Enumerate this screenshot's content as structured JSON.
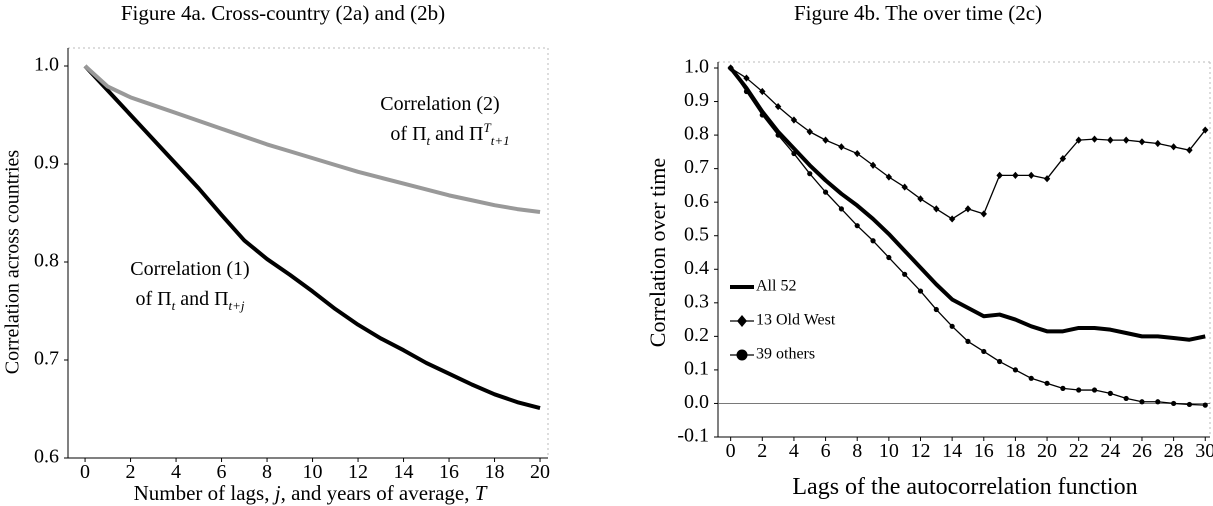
{
  "chart_data": [
    {
      "type": "line",
      "title": "Figure 4a. Cross-country (2a) and (2b)",
      "y_label": "Correlation across countries",
      "x_label": [
        "Number of lags, ",
        "j",
        ", and years of average, ",
        "T"
      ],
      "annotations": [
        {
          "line1": "Correlation (2)",
          "line2": [
            "of Π",
            "t",
            " and Π",
            "T",
            "t+1"
          ]
        },
        {
          "line1": "Correlation (1)",
          "line2": [
            "of Π",
            "t",
            " and Π",
            "t+j"
          ]
        }
      ],
      "x": [
        0,
        1,
        2,
        3,
        4,
        5,
        6,
        7,
        8,
        9,
        10,
        11,
        12,
        13,
        14,
        15,
        16,
        17,
        18,
        19,
        20
      ],
      "series": [
        {
          "color": "#000000",
          "linewidth": 4,
          "values": [
            1.0,
            0.975,
            0.95,
            0.925,
            0.9,
            0.875,
            0.848,
            0.822,
            0.803,
            0.787,
            0.77,
            0.752,
            0.736,
            0.722,
            0.71,
            0.697,
            0.686,
            0.675,
            0.665,
            0.657,
            0.651
          ]
        },
        {
          "color": "#999999",
          "linewidth": 4,
          "values": [
            1.0,
            0.979,
            0.968,
            0.96,
            0.952,
            0.944,
            0.936,
            0.928,
            0.92,
            0.913,
            0.906,
            0.899,
            0.892,
            0.886,
            0.88,
            0.874,
            0.868,
            0.863,
            0.858,
            0.854,
            0.851
          ]
        }
      ],
      "xlim": [
        -0.75,
        20.35
      ],
      "xticks": [
        0,
        2,
        4,
        6,
        8,
        10,
        12,
        14,
        16,
        18,
        20
      ],
      "ylim": [
        0.6,
        1.0
      ],
      "yticks": [
        0.6,
        0.7,
        0.8,
        0.9,
        {
          "value": 1,
          "label": "1.0"
        }
      ],
      "grid": false
    },
    {
      "type": "line",
      "title": "Figure 4b. The over time (2c)",
      "y_label": "Correlation over time",
      "x_label": "Lags of the autocorrelation function",
      "x": [
        0,
        1,
        2,
        3,
        4,
        5,
        6,
        7,
        8,
        9,
        10,
        11,
        12,
        13,
        14,
        15,
        16,
        17,
        18,
        19,
        20,
        21,
        22,
        23,
        24,
        25,
        26,
        27,
        28,
        29,
        30
      ],
      "series": [
        {
          "name": "All 52",
          "color": "#000000",
          "linewidth": 4,
          "marker": "none",
          "values": [
            1.0,
            0.94,
            0.87,
            0.81,
            0.76,
            0.71,
            0.665,
            0.625,
            0.59,
            0.55,
            0.505,
            0.455,
            0.405,
            0.355,
            0.31,
            0.285,
            0.26,
            0.265,
            0.25,
            0.23,
            0.215,
            0.215,
            0.225,
            0.225,
            0.22,
            0.21,
            0.2,
            0.2,
            0.195,
            0.19,
            0.2
          ]
        },
        {
          "name": "13 Old West",
          "color": "#000000",
          "linewidth": 1.3,
          "marker": "diamond",
          "values": [
            1.0,
            0.97,
            0.93,
            0.885,
            0.845,
            0.81,
            0.785,
            0.765,
            0.745,
            0.71,
            0.675,
            0.645,
            0.61,
            0.58,
            0.55,
            0.58,
            0.565,
            0.68,
            0.68,
            0.68,
            0.67,
            0.73,
            0.785,
            0.788,
            0.785,
            0.785,
            0.78,
            0.775,
            0.765,
            0.755,
            0.815
          ]
        },
        {
          "name": "39 others",
          "color": "#000000",
          "linewidth": 1.3,
          "marker": "circle",
          "values": [
            1.0,
            0.93,
            0.86,
            0.8,
            0.745,
            0.685,
            0.63,
            0.58,
            0.53,
            0.485,
            0.435,
            0.385,
            0.335,
            0.28,
            0.23,
            0.185,
            0.155,
            0.125,
            0.1,
            0.075,
            0.06,
            0.045,
            0.04,
            0.04,
            0.03,
            0.015,
            0.005,
            0.005,
            0.0,
            -0.003,
            -0.005
          ]
        }
      ],
      "xlim": [
        -0.8,
        30.3
      ],
      "xticks": [
        0,
        2,
        4,
        6,
        8,
        10,
        12,
        14,
        16,
        18,
        20,
        22,
        24,
        26,
        28,
        30
      ],
      "ylim": [
        -0.1,
        1.0
      ],
      "yticks": [
        -0.1,
        {
          "value": 0,
          "label": "0.0"
        },
        0.1,
        0.2,
        0.3,
        0.4,
        0.5,
        0.6,
        0.7,
        0.8,
        0.9,
        {
          "value": 1,
          "label": "1.0"
        }
      ],
      "legend": "lower left",
      "grid": false
    }
  ]
}
